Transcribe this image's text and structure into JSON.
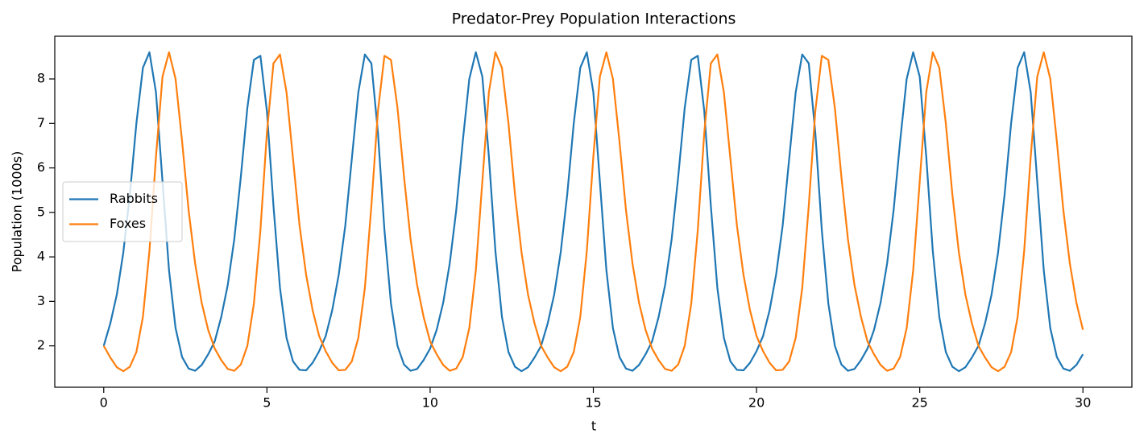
{
  "chart_data": {
    "type": "line",
    "title": "Predator-Prey Population Interactions",
    "x_label": "t",
    "y_label": "Population (1000s)",
    "x": [
      0,
      0.2,
      0.4,
      0.6,
      0.8,
      1,
      1.2,
      1.4,
      1.6,
      1.8,
      2,
      2.2,
      2.4,
      2.6,
      2.8,
      3,
      3.2,
      3.4,
      3.6,
      3.8,
      4,
      4.2,
      4.4,
      4.6,
      4.8,
      5,
      5.2,
      5.4,
      5.6,
      5.8,
      6,
      6.2,
      6.4,
      6.6,
      6.8,
      7,
      7.2,
      7.4,
      7.6,
      7.8,
      8,
      8.2,
      8.4,
      8.6,
      8.8,
      9,
      9.2,
      9.4,
      9.6,
      9.8,
      10,
      10.2,
      10.4,
      10.6,
      10.8,
      11,
      11.2,
      11.4,
      11.6,
      11.8,
      12,
      12.2,
      12.4,
      12.6,
      12.8,
      13,
      13.2,
      13.4,
      13.6,
      13.8,
      14,
      14.2,
      14.4,
      14.6,
      14.8,
      15,
      15.2,
      15.4,
      15.6,
      15.8,
      16,
      16.2,
      16.4,
      16.6,
      16.8,
      17,
      17.2,
      17.4,
      17.6,
      17.8,
      18,
      18.2,
      18.4,
      18.6,
      18.8,
      19,
      19.2,
      19.4,
      19.6,
      19.8,
      20,
      20.2,
      20.4,
      20.6,
      20.8,
      21,
      21.2,
      21.4,
      21.6,
      21.8,
      22,
      22.2,
      22.4,
      22.6,
      22.8,
      23,
      23.2,
      23.4,
      23.6,
      23.8,
      24,
      24.2,
      24.4,
      24.6,
      24.8,
      25,
      25.2,
      25.4,
      25.6,
      25.8,
      26,
      26.2,
      26.4,
      26.6,
      26.8,
      27,
      27.2,
      27.4,
      27.6,
      27.8,
      28,
      28.2,
      28.4,
      28.6,
      28.8,
      29,
      29.2,
      29.4,
      29.6,
      29.8,
      30
    ],
    "series": [
      {
        "name": "Rabbits",
        "color": "#1f77b4",
        "values": [
          2.0,
          2.5,
          3.15,
          4.1,
          5.4,
          7.0,
          8.25,
          8.6,
          7.7,
          5.7,
          3.7,
          2.4,
          1.75,
          1.49,
          1.44,
          1.57,
          1.81,
          2.1,
          2.65,
          3.37,
          4.4,
          5.8,
          7.35,
          8.43,
          8.52,
          7.27,
          5.15,
          3.3,
          2.18,
          1.65,
          1.46,
          1.45,
          1.62,
          1.88,
          2.22,
          2.8,
          3.6,
          4.7,
          6.2,
          7.7,
          8.55,
          8.35,
          6.8,
          4.6,
          2.95,
          2.0,
          1.58,
          1.44,
          1.48,
          1.68,
          1.94,
          2.36,
          2.97,
          3.85,
          5.05,
          6.6,
          8.0,
          8.6,
          8.05,
          6.25,
          4.13,
          2.65,
          1.86,
          1.53,
          1.43,
          1.52,
          1.74,
          2.0,
          2.5,
          3.15,
          4.1,
          5.4,
          7.0,
          8.25,
          8.6,
          7.7,
          5.7,
          3.7,
          2.4,
          1.75,
          1.49,
          1.44,
          1.57,
          1.81,
          2.1,
          2.65,
          3.37,
          4.4,
          5.8,
          7.35,
          8.43,
          8.52,
          7.27,
          5.15,
          3.3,
          2.18,
          1.65,
          1.46,
          1.45,
          1.62,
          1.88,
          2.22,
          2.8,
          3.6,
          4.7,
          6.2,
          7.7,
          8.55,
          8.35,
          6.8,
          4.6,
          2.95,
          2.0,
          1.58,
          1.44,
          1.48,
          1.68,
          1.94,
          2.36,
          2.97,
          3.85,
          5.05,
          6.6,
          8.0,
          8.6,
          8.05,
          6.25,
          4.13,
          2.65,
          1.86,
          1.53,
          1.43,
          1.52,
          1.74,
          2.0,
          2.5,
          3.15,
          4.1,
          5.4,
          7.0,
          8.25,
          8.6,
          7.7,
          5.7,
          3.7,
          2.4,
          1.75,
          1.49,
          1.44,
          1.57,
          1.81
        ]
      },
      {
        "name": "Foxes",
        "color": "#ff7f0e",
        "values": [
          2.0,
          1.74,
          1.52,
          1.43,
          1.53,
          1.86,
          2.65,
          4.13,
          6.25,
          8.05,
          8.6,
          8.0,
          6.6,
          5.05,
          3.85,
          2.97,
          2.36,
          1.94,
          1.68,
          1.48,
          1.44,
          1.58,
          2.0,
          2.95,
          4.6,
          6.8,
          8.35,
          8.55,
          7.7,
          6.2,
          4.7,
          3.6,
          2.8,
          2.22,
          1.88,
          1.62,
          1.45,
          1.46,
          1.65,
          2.18,
          3.3,
          5.15,
          7.27,
          8.52,
          8.43,
          7.35,
          5.8,
          4.4,
          3.37,
          2.65,
          2.1,
          1.81,
          1.57,
          1.44,
          1.49,
          1.75,
          2.4,
          3.7,
          5.7,
          7.7,
          8.6,
          8.25,
          7.0,
          5.4,
          4.1,
          3.15,
          2.5,
          2.0,
          1.74,
          1.52,
          1.43,
          1.53,
          1.86,
          2.65,
          4.13,
          6.25,
          8.05,
          8.6,
          8.0,
          6.6,
          5.05,
          3.85,
          2.97,
          2.36,
          1.94,
          1.68,
          1.48,
          1.44,
          1.58,
          2.0,
          2.95,
          4.6,
          6.8,
          8.35,
          8.55,
          7.7,
          6.2,
          4.7,
          3.6,
          2.8,
          2.22,
          1.88,
          1.62,
          1.45,
          1.46,
          1.65,
          2.18,
          3.3,
          5.15,
          7.27,
          8.52,
          8.43,
          7.35,
          5.8,
          4.4,
          3.37,
          2.65,
          2.1,
          1.81,
          1.57,
          1.44,
          1.49,
          1.75,
          2.4,
          3.7,
          5.7,
          7.7,
          8.6,
          8.25,
          7.0,
          5.4,
          4.1,
          3.15,
          2.5,
          2.0,
          1.74,
          1.52,
          1.43,
          1.53,
          1.86,
          2.65,
          4.13,
          6.25,
          8.05,
          8.6,
          8.0,
          6.6,
          5.05,
          3.85,
          2.97,
          2.36
        ]
      }
    ],
    "xlim": [
      -1.5,
      31.5
    ],
    "ylim": [
      1.07,
      8.96
    ],
    "xticks": [
      0,
      5,
      10,
      15,
      20,
      25,
      30
    ],
    "yticks": [
      2,
      3,
      4,
      5,
      6,
      7,
      8
    ],
    "grid": false,
    "legend_loc": "center left"
  }
}
